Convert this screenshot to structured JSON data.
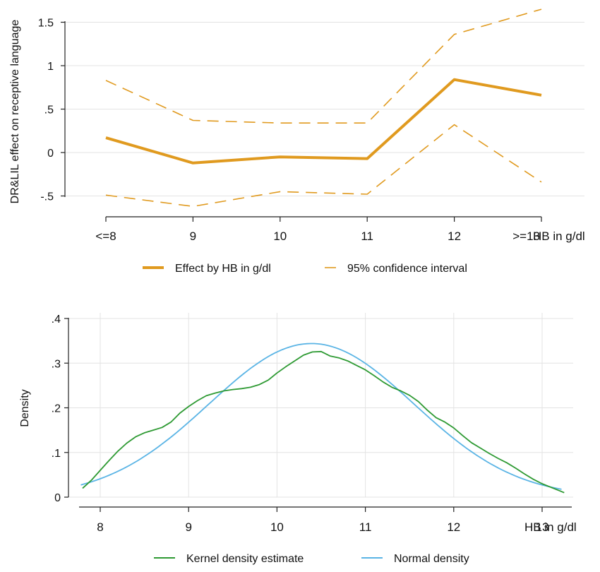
{
  "chart_data": [
    {
      "type": "line",
      "ylabel": "DR&LIL effect on receptive language",
      "xlabel": "HB in g/dl",
      "categories": [
        "<=8",
        "9",
        "10",
        "11",
        "12",
        ">=13"
      ],
      "yticks": [
        -0.5,
        0,
        0.5,
        1,
        1.5
      ],
      "ytick_labels": [
        "-.5",
        "0",
        ".5",
        "1",
        "1.5"
      ],
      "ylim": [
        -0.55,
        1.65
      ],
      "grid": true,
      "legend_position": "bottom",
      "series": [
        {
          "name": "Effect by HB in g/dl",
          "style": "solid",
          "color": "#E09A1F",
          "values": [
            0.17,
            -0.12,
            -0.05,
            -0.07,
            0.84,
            0.66
          ]
        },
        {
          "name": "95% confidence interval",
          "style": "dashed",
          "color": "#E09A1F",
          "values": [
            0.83,
            0.37,
            0.34,
            0.34,
            1.36,
            1.65
          ]
        },
        {
          "name": "",
          "style": "dashed",
          "color": "#E09A1F",
          "values": [
            -0.49,
            -0.62,
            -0.45,
            -0.48,
            0.32,
            -0.34
          ]
        }
      ]
    },
    {
      "type": "line",
      "ylabel": "Density",
      "xlabel": "HB in g/dl",
      "xticks": [
        8,
        9,
        10,
        11,
        12,
        13
      ],
      "yticks": [
        0,
        0.1,
        0.2,
        0.3,
        0.4
      ],
      "ytick_labels": [
        "0",
        ".1",
        ".2",
        ".3",
        ".4"
      ],
      "xlim": [
        7.72,
        13.28
      ],
      "ylim": [
        0,
        0.4
      ],
      "grid": true,
      "legend_position": "bottom",
      "series": [
        {
          "name": "Kernel density estimate",
          "color": "#2E9A33",
          "x": [
            7.8,
            7.9,
            8.0,
            8.1,
            8.2,
            8.3,
            8.4,
            8.5,
            8.6,
            8.7,
            8.8,
            8.9,
            9.0,
            9.1,
            9.2,
            9.3,
            9.4,
            9.5,
            9.6,
            9.7,
            9.8,
            9.9,
            10.0,
            10.1,
            10.2,
            10.3,
            10.4,
            10.5,
            10.6,
            10.7,
            10.8,
            10.9,
            11.0,
            11.1,
            11.2,
            11.3,
            11.4,
            11.5,
            11.6,
            11.7,
            11.8,
            11.9,
            12.0,
            12.1,
            12.2,
            12.3,
            12.4,
            12.5,
            12.6,
            12.7,
            12.8,
            12.9,
            13.0,
            13.1,
            13.2,
            13.25
          ],
          "values": [
            0.02,
            0.038,
            0.06,
            0.082,
            0.103,
            0.121,
            0.135,
            0.144,
            0.15,
            0.156,
            0.168,
            0.188,
            0.203,
            0.216,
            0.227,
            0.233,
            0.238,
            0.241,
            0.243,
            0.246,
            0.252,
            0.262,
            0.278,
            0.292,
            0.305,
            0.318,
            0.325,
            0.326,
            0.316,
            0.312,
            0.305,
            0.295,
            0.285,
            0.272,
            0.258,
            0.246,
            0.238,
            0.228,
            0.214,
            0.195,
            0.178,
            0.168,
            0.155,
            0.138,
            0.122,
            0.11,
            0.098,
            0.087,
            0.077,
            0.065,
            0.052,
            0.04,
            0.03,
            0.022,
            0.014,
            0.01
          ]
        },
        {
          "name": "Normal density",
          "color": "#5AB4E5",
          "mean": 10.39,
          "sd": 1.16,
          "x": [
            7.78,
            13.22
          ]
        }
      ]
    }
  ]
}
